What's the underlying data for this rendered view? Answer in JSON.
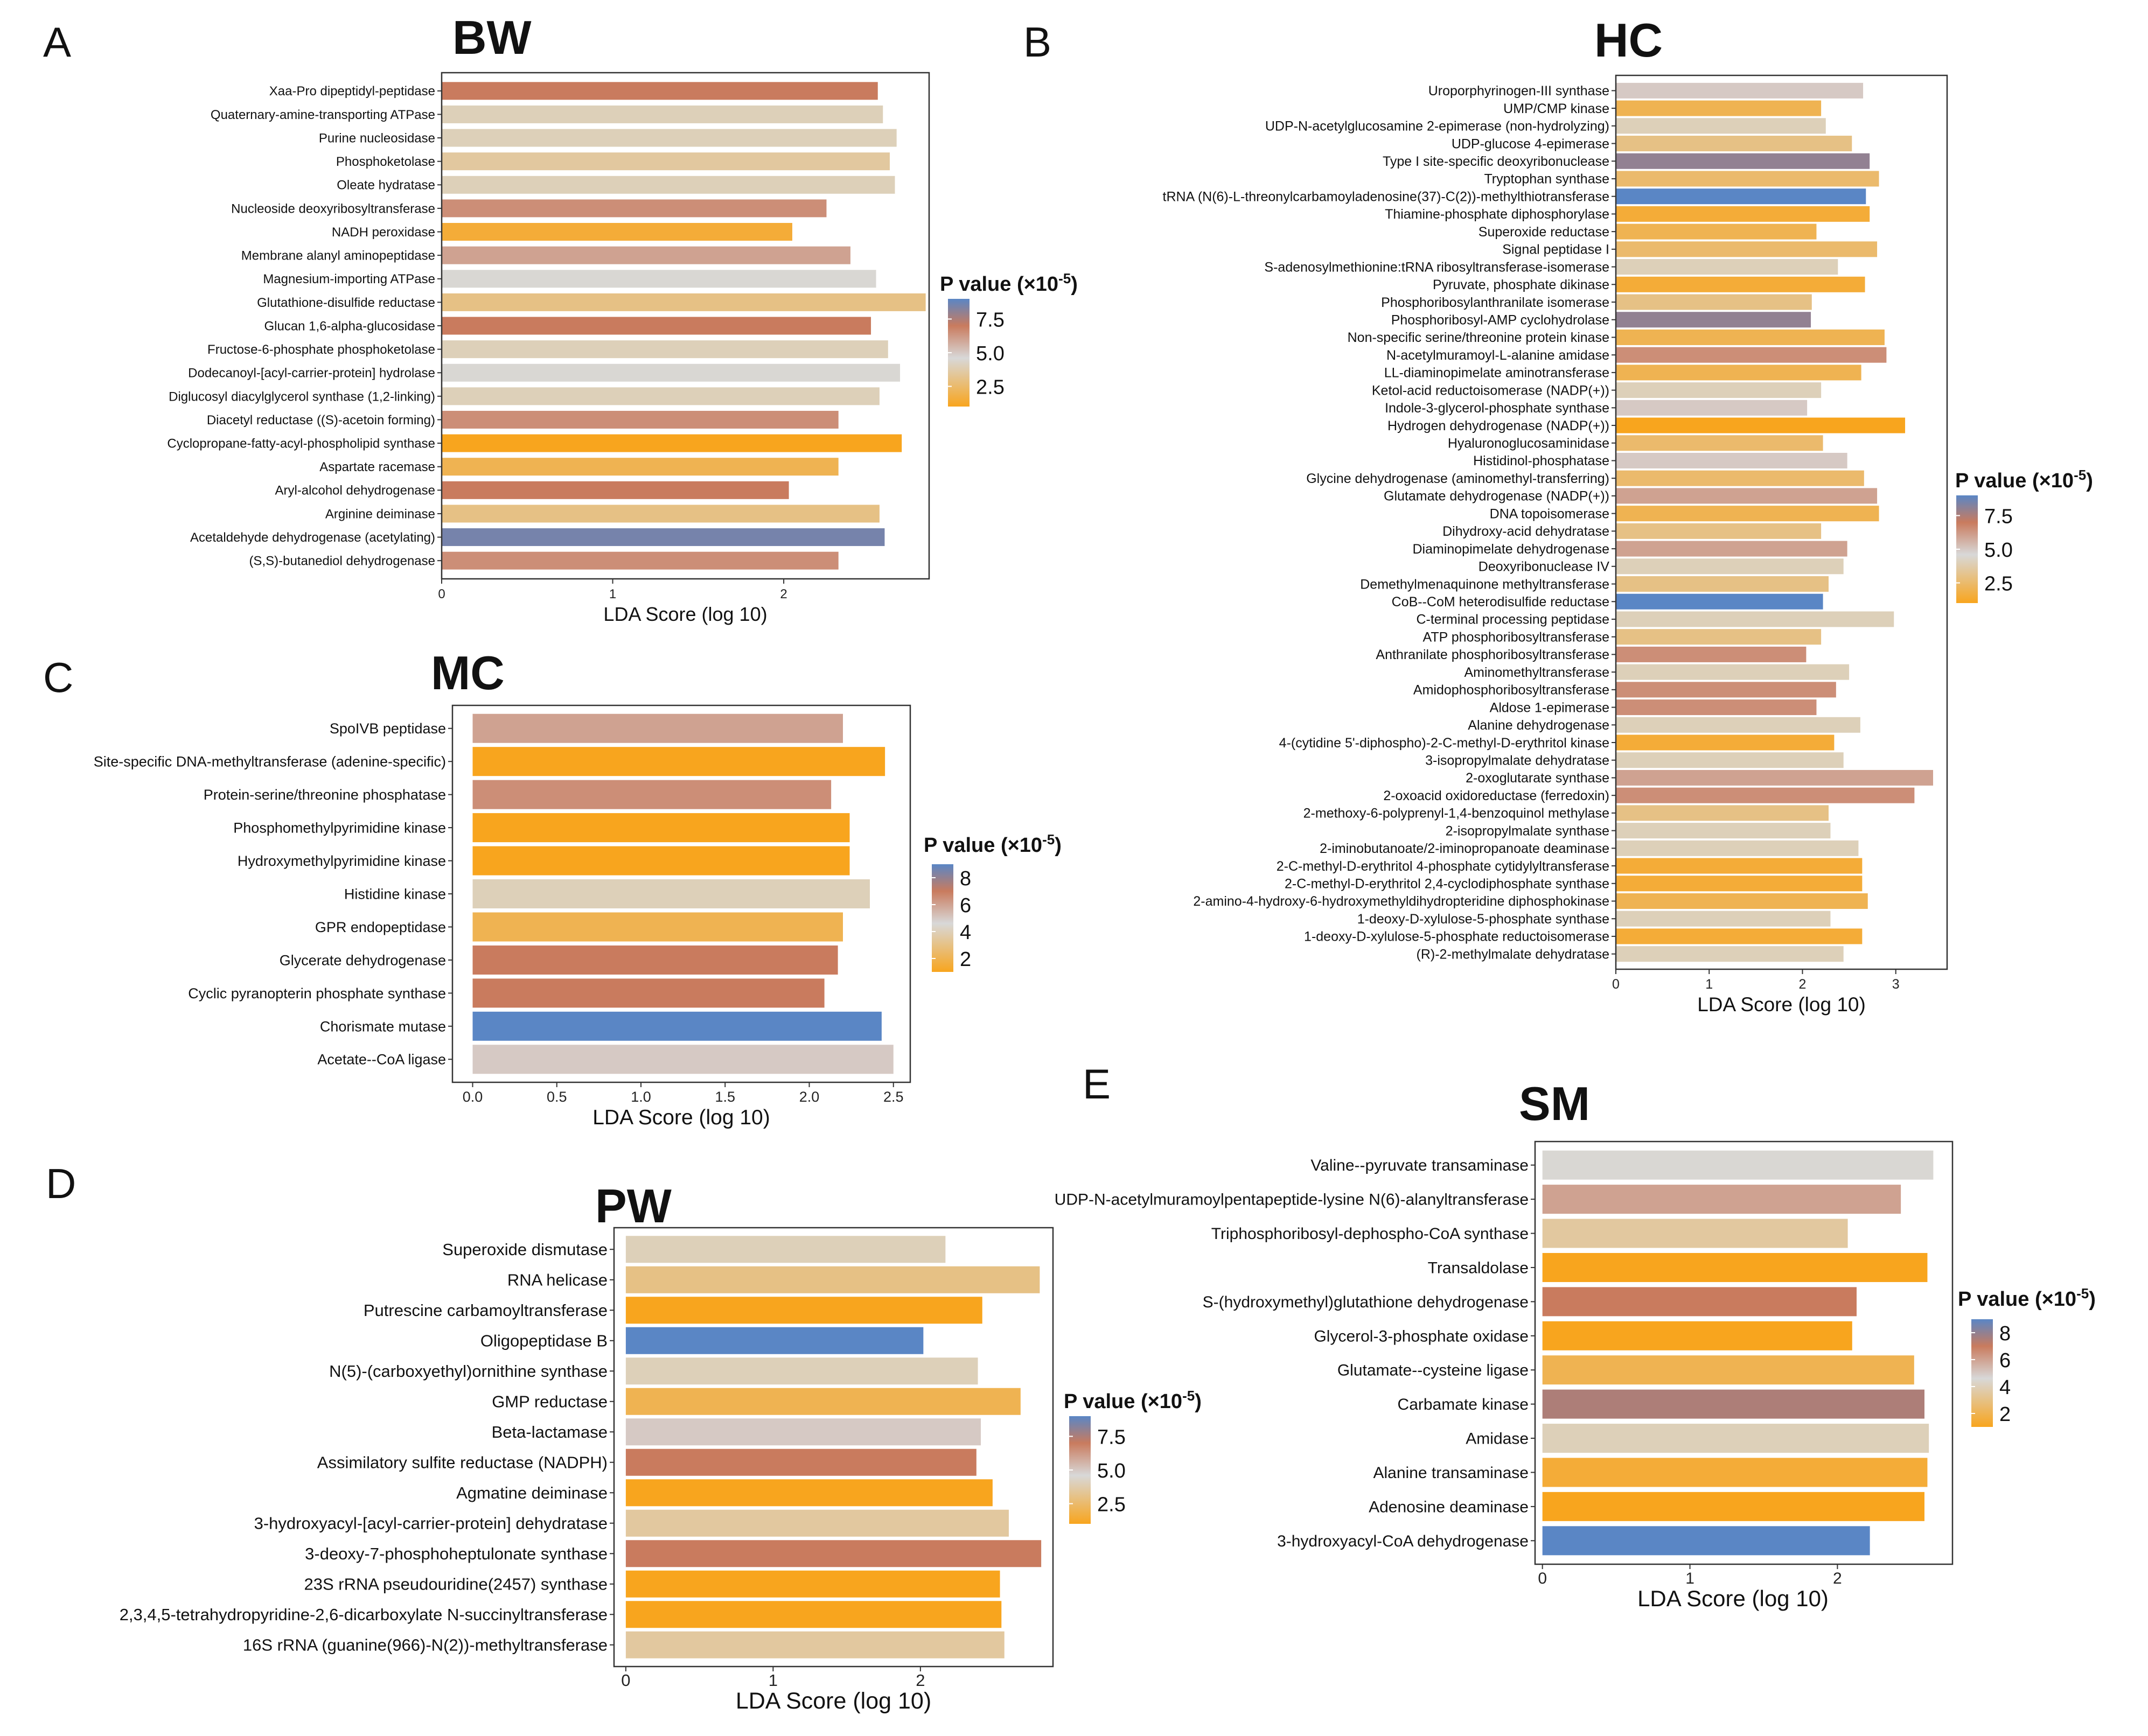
{
  "legend_units_base": "P value (×10",
  "legend_units_exp": "-5",
  "legend_units_close": ")",
  "colorscale": {
    "low": "#f8a51e",
    "mid": "#d8d8d8",
    "midhi": "#c97b5e",
    "high": "#5a86c5"
  },
  "chart_data": [
    {
      "panel": "A",
      "title": "BW",
      "type": "bar",
      "orientation": "horizontal",
      "xlabel": "LDA Score (log 10)",
      "xlim": [
        0,
        2.85
      ],
      "xticks": [
        0,
        1,
        2
      ],
      "legend": {
        "title": "P value (×10^-5)",
        "ticks": [
          7.5,
          5.0,
          2.5
        ],
        "tick_labels": [
          "7.5",
          "5.0",
          "2.5"
        ],
        "range": [
          1,
          9
        ]
      },
      "categories": [
        "Xaa-Pro dipeptidyl-peptidase",
        "Quaternary-amine-transporting ATPase",
        "Purine nucleosidase",
        "Phosphoketolase",
        "Oleate hydratase",
        "Nucleoside deoxyribosyltransferase",
        "NADH peroxidase",
        "Membrane alanyl aminopeptidase",
        "Magnesium-importing ATPase",
        "Glutathione-disulfide reductase",
        "Glucan 1,6-alpha-glucosidase",
        "Fructose-6-phosphate phosphoketolase",
        "Dodecanoyl-[acyl-carrier-protein] hydrolase",
        "Diglucosyl diacylglycerol synthase (1,2-linking)",
        "Diacetyl reductase ((S)-acetoin forming)",
        "Cyclopropane-fatty-acyl-phospholipid synthase",
        "Aspartate racemase",
        "Aryl-alcohol dehydrogenase",
        "Arginine deiminase",
        "Acetaldehyde dehydrogenase (acetylating)",
        "(S,S)-butanediol dehydrogenase"
      ],
      "values": [
        2.55,
        2.58,
        2.66,
        2.62,
        2.65,
        2.25,
        2.05,
        2.39,
        2.54,
        2.83,
        2.51,
        2.61,
        2.68,
        2.56,
        2.32,
        2.69,
        2.32,
        2.03,
        2.56,
        2.59,
        2.32
      ],
      "pvalues": [
        7.0,
        4.0,
        4.0,
        3.5,
        4.0,
        6.5,
        1.5,
        6.0,
        4.5,
        3.0,
        7.0,
        4.0,
        4.5,
        4.0,
        6.5,
        1.0,
        2.0,
        7.0,
        3.0,
        8.5,
        6.5
      ]
    },
    {
      "panel": "B",
      "title": "HC",
      "type": "bar",
      "orientation": "horizontal",
      "xlabel": "LDA Score (log 10)",
      "xlim": [
        0,
        3.55
      ],
      "xticks": [
        0,
        1,
        2,
        3
      ],
      "legend": {
        "title": "P value (×10^-5)",
        "ticks": [
          7.5,
          5.0,
          2.5
        ],
        "tick_labels": [
          "7.5",
          "5.0",
          "2.5"
        ],
        "range": [
          1,
          9
        ]
      },
      "categories": [
        "Uroporphyrinogen-III synthase",
        "UMP/CMP kinase",
        "UDP-N-acetylglucosamine 2-epimerase (non-hydrolyzing)",
        "UDP-glucose 4-epimerase",
        "Type I site-specific deoxyribonuclease",
        "Tryptophan synthase",
        "tRNA (N(6)-L-threonylcarbamoyladenosine(37)-C(2))-methylthiotransferase",
        "Thiamine-phosphate diphosphorylase",
        "Superoxide reductase",
        "Signal peptidase I",
        "S-adenosylmethionine:tRNA ribosyltransferase-isomerase",
        "Pyruvate, phosphate dikinase",
        "Phosphoribosylanthranilate isomerase",
        "Phosphoribosyl-AMP cyclohydrolase",
        "Non-specific serine/threonine protein kinase",
        "N-acetylmuramoyl-L-alanine amidase",
        "LL-diaminopimelate aminotransferase",
        "Ketol-acid reductoisomerase (NADP(+))",
        "Indole-3-glycerol-phosphate synthase",
        "Hydrogen dehydrogenase (NADP(+))",
        "Hyaluronoglucosaminidase",
        "Histidinol-phosphatase",
        "Glycine dehydrogenase (aminomethyl-transferring)",
        "Glutamate dehydrogenase (NADP(+))",
        "DNA topoisomerase",
        "Dihydroxy-acid dehydratase",
        "Diaminopimelate dehydrogenase",
        "Deoxyribonuclease IV",
        "Demethylmenaquinone methyltransferase",
        "CoB--CoM heterodisulfide reductase",
        "C-terminal processing peptidase",
        "ATP phosphoribosyltransferase",
        "Anthranilate phosphoribosyltransferase",
        "Aminomethyltransferase",
        "Amidophosphoribosyltransferase",
        "Aldose 1-epimerase",
        "Alanine dehydrogenase",
        "4-(cytidine 5'-diphospho)-2-C-methyl-D-erythritol kinase",
        "3-isopropylmalate dehydratase",
        "2-oxoglutarate synthase",
        "2-oxoacid oxidoreductase (ferredoxin)",
        "2-methoxy-6-polyprenyl-1,4-benzoquinol methylase",
        "2-isopropylmalate synthase",
        "2-iminobutanoate/2-iminopropanoate deaminase",
        "2-C-methyl-D-erythritol 4-phosphate cytidylyltransferase",
        "2-C-methyl-D-erythritol 2,4-cyclodiphosphate synthase",
        "2-amino-4-hydroxy-6-hydroxymethyldihydropteridine diphosphokinase",
        "1-deoxy-D-xylulose-5-phosphate synthase",
        "1-deoxy-D-xylulose-5-phosphate reductoisomerase",
        "(R)-2-methylmalate dehydratase"
      ],
      "values": [
        2.65,
        2.2,
        2.25,
        2.53,
        2.72,
        2.82,
        2.68,
        2.72,
        2.15,
        2.8,
        2.38,
        2.67,
        2.1,
        2.09,
        2.88,
        2.9,
        2.63,
        2.2,
        2.05,
        3.1,
        2.22,
        2.48,
        2.66,
        2.8,
        2.82,
        2.2,
        2.48,
        2.44,
        2.28,
        2.22,
        2.98,
        2.2,
        2.04,
        2.5,
        2.36,
        2.15,
        2.62,
        2.34,
        2.44,
        3.4,
        3.2,
        2.28,
        2.3,
        2.6,
        2.64,
        2.64,
        2.7,
        2.3,
        2.64,
        2.44
      ],
      "pvalues": [
        5.0,
        2.0,
        4.0,
        3.0,
        8.0,
        2.5,
        9.0,
        1.5,
        2.0,
        2.5,
        4.0,
        1.5,
        3.0,
        8.0,
        2.0,
        6.5,
        2.0,
        4.0,
        5.0,
        1.0,
        2.5,
        5.0,
        2.5,
        6.0,
        2.0,
        3.0,
        6.0,
        4.0,
        3.0,
        9.0,
        4.0,
        3.0,
        6.5,
        4.0,
        6.5,
        6.5,
        4.0,
        1.5,
        4.0,
        6.0,
        6.5,
        3.0,
        4.0,
        4.0,
        1.5,
        1.5,
        2.0,
        4.0,
        1.5,
        4.0
      ]
    },
    {
      "panel": "C",
      "title": "MC",
      "type": "bar",
      "orientation": "horizontal",
      "xlabel": "LDA Score (log 10)",
      "xlim": [
        -0.12,
        2.6
      ],
      "xticks": [
        0.0,
        0.5,
        1.0,
        1.5,
        2.0,
        2.5
      ],
      "xtick_labels": [
        "0.0",
        "0.5",
        "1.0",
        "1.5",
        "2.0",
        "2.5"
      ],
      "legend": {
        "title": "P value (×10^-5)",
        "ticks": [
          8,
          6,
          4,
          2
        ],
        "tick_labels": [
          "8",
          "6",
          "4",
          "2"
        ],
        "range": [
          1,
          9
        ]
      },
      "categories": [
        "SpoIVB peptidase",
        "Site-specific DNA-methyltransferase (adenine-specific)",
        "Protein-serine/threonine phosphatase",
        "Phosphomethylpyrimidine kinase",
        "Hydroxymethylpyrimidine kinase",
        "Histidine kinase",
        "GPR endopeptidase",
        "Glycerate dehydrogenase",
        "Cyclic pyranopterin phosphate synthase",
        "Chorismate mutase",
        "Acetate--CoA ligase"
      ],
      "values": [
        2.2,
        2.45,
        2.13,
        2.24,
        2.24,
        2.36,
        2.2,
        2.17,
        2.09,
        2.43,
        2.5
      ],
      "pvalues": [
        6.0,
        1.0,
        6.5,
        1.0,
        1.0,
        4.0,
        2.0,
        7.0,
        7.0,
        9.0,
        5.0
      ]
    },
    {
      "panel": "D",
      "title": "PW",
      "type": "bar",
      "orientation": "horizontal",
      "xlabel": "LDA Score (log 10)",
      "xlim": [
        -0.08,
        2.9
      ],
      "xticks": [
        0,
        1,
        2
      ],
      "legend": {
        "title": "P value (×10^-5)",
        "ticks": [
          7.5,
          5.0,
          2.5
        ],
        "tick_labels": [
          "7.5",
          "5.0",
          "2.5"
        ],
        "range": [
          1,
          9
        ]
      },
      "categories": [
        "Superoxide dismutase",
        "RNA helicase",
        "Putrescine carbamoyltransferase",
        "Oligopeptidase B",
        "N(5)-(carboxyethyl)ornithine synthase",
        "GMP reductase",
        "Beta-lactamase",
        "Assimilatory sulfite reductase (NADPH)",
        "Agmatine deiminase",
        "3-hydroxyacyl-[acyl-carrier-protein] dehydratase",
        "3-deoxy-7-phosphoheptulonate synthase",
        "23S rRNA pseudouridine(2457) synthase",
        "2,3,4,5-tetrahydropyridine-2,6-dicarboxylate N-succinyltransferase",
        "16S rRNA (guanine(966)-N(2))-methyltransferase"
      ],
      "values": [
        2.17,
        2.81,
        2.42,
        2.02,
        2.39,
        2.68,
        2.41,
        2.38,
        2.49,
        2.6,
        2.82,
        2.54,
        2.55,
        2.57
      ],
      "pvalues": [
        4.0,
        3.0,
        1.0,
        9.0,
        4.0,
        2.0,
        5.0,
        7.0,
        1.0,
        3.5,
        7.0,
        1.0,
        1.0,
        3.5
      ]
    },
    {
      "panel": "E",
      "title": "SM",
      "type": "bar",
      "orientation": "horizontal",
      "xlabel": "LDA Score (log 10)",
      "xlim": [
        -0.05,
        2.78
      ],
      "xticks": [
        0,
        1,
        2
      ],
      "legend": {
        "title": "P value (×10^-5)",
        "ticks": [
          8,
          6,
          4,
          2
        ],
        "tick_labels": [
          "8",
          "6",
          "4",
          "2"
        ],
        "range": [
          1,
          9
        ]
      },
      "categories": [
        "Valine--pyruvate transaminase",
        "UDP-N-acetylmuramoylpentapeptide-lysine N(6)-alanyltransferase",
        "Triphosphoribosyl-dephospho-CoA synthase",
        "Transaldolase",
        "S-(hydroxymethyl)glutathione dehydrogenase",
        "Glycerol-3-phosphate oxidase",
        "Glutamate--cysteine ligase",
        "Carbamate kinase",
        "Amidase",
        "Alanine transaminase",
        "Adenosine deaminase",
        "3-hydroxyacyl-CoA dehydrogenase"
      ],
      "values": [
        2.65,
        2.43,
        2.07,
        2.61,
        2.13,
        2.1,
        2.52,
        2.59,
        2.62,
        2.61,
        2.59,
        2.22
      ],
      "pvalues": [
        4.5,
        6.0,
        3.5,
        1.0,
        7.0,
        1.0,
        2.0,
        7.5,
        4.0,
        1.5,
        1.0,
        9.0
      ]
    }
  ]
}
